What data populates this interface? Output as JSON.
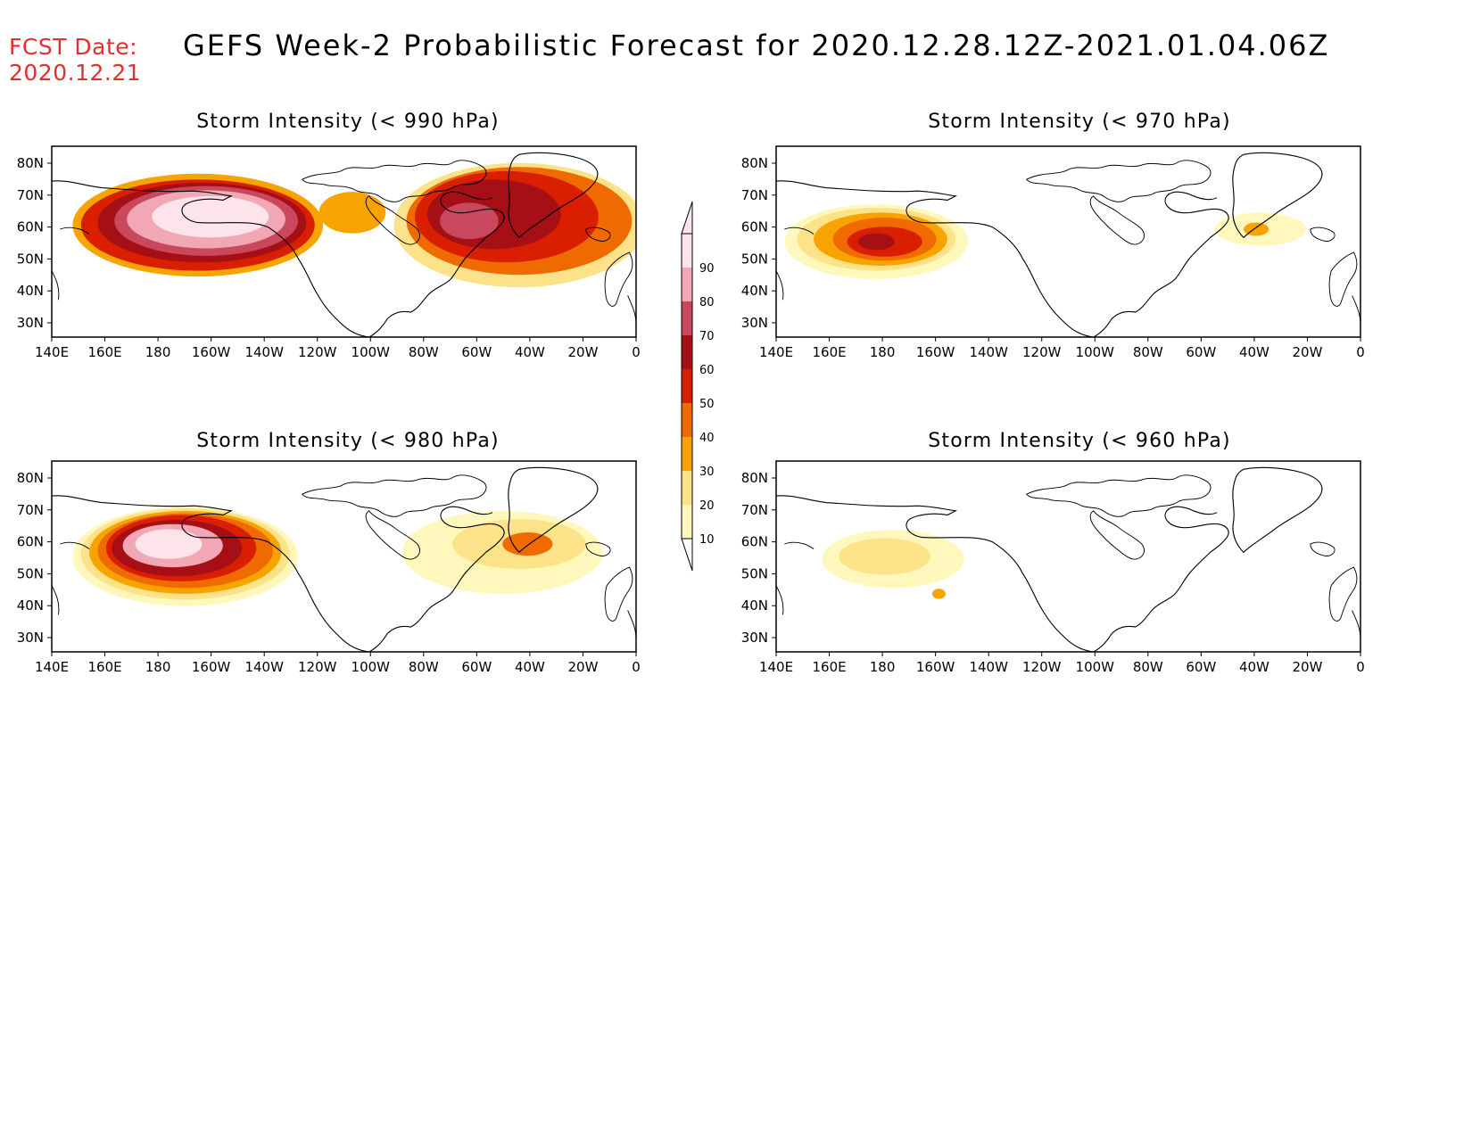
{
  "header": {
    "fcst_label": "FCST Date:",
    "fcst_date": "2020.12.21",
    "title": "GEFS Week-2 Probabilistic Forecast for 2020.12.28.12Z-2021.01.04.06Z"
  },
  "panels": [
    {
      "title": "Storm Intensity (< 990 hPa)"
    },
    {
      "title": "Storm Intensity (< 970 hPa)"
    },
    {
      "title": "Storm Intensity (< 980 hPa)"
    },
    {
      "title": "Storm Intensity (< 960 hPa)"
    }
  ],
  "axes": {
    "lon_labels": [
      "140E",
      "160E",
      "180",
      "160W",
      "140W",
      "120W",
      "100W",
      "80W",
      "60W",
      "40W",
      "20W",
      "0"
    ],
    "lat_labels": [
      "80N",
      "70N",
      "60N",
      "50N",
      "40N",
      "30N"
    ]
  },
  "colorbar": {
    "levels": [
      "10",
      "20",
      "30",
      "40",
      "50",
      "60",
      "70",
      "80",
      "90"
    ],
    "colors": [
      "#fff7bc",
      "#fce38a",
      "#f7a300",
      "#ef6a00",
      "#d91f00",
      "#a50f15",
      "#c9485e",
      "#f2a7b4",
      "#fce4ea"
    ]
  }
}
